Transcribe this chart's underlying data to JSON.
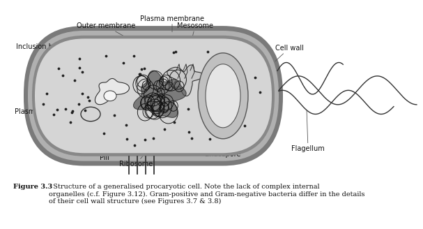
{
  "bg_color": "#ffffff",
  "cell_wall_color": "#888888",
  "outer_mem_color": "#aaaaaa",
  "plasma_mem_color": "#777777",
  "cytoplasm_color": "#d8d8d8",
  "endospore_outer_color": "#bbbbbb",
  "endospore_inner_color": "#e8e8e8",
  "line_color": "#333333",
  "caption_title": "Figure 3.3",
  "caption_text": "  Structure of a generalised procaryotic cell. Note the lack of complex internal\norganelles (c.f. Figure 3.12). Gram-positive and Gram-negative bacteria differ in the details\nof their cell wall structure (see Figures 3.7 & 3.8)"
}
